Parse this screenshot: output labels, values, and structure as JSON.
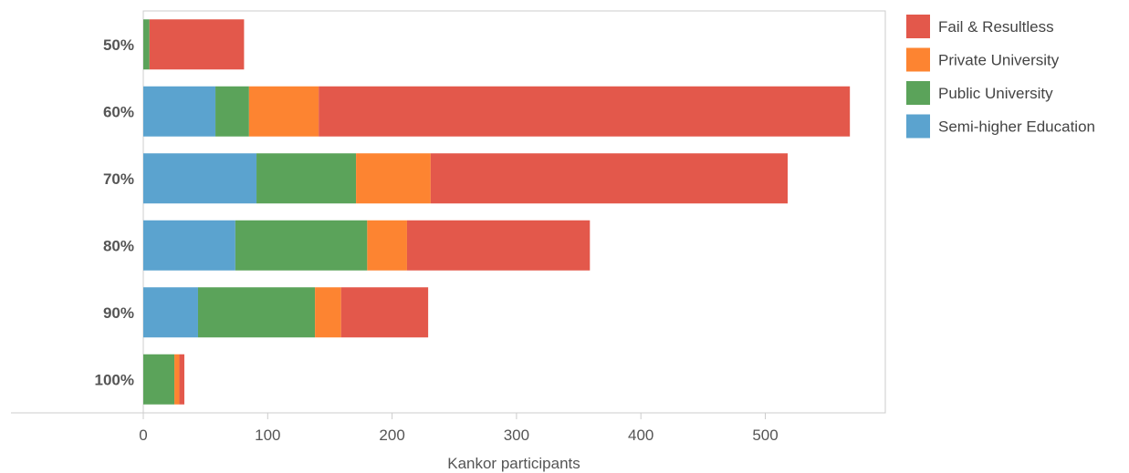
{
  "chart_data": {
    "type": "bar",
    "orientation": "horizontal",
    "stacked": true,
    "categories": [
      "50%",
      "60%",
      "70%",
      "80%",
      "90%",
      "100%"
    ],
    "series": [
      {
        "name": "Semi-higher Education",
        "color": "#5ba3cf",
        "values": [
          0,
          58,
          91,
          74,
          44,
          0
        ]
      },
      {
        "name": "Public University",
        "color": "#5ba35a",
        "values": [
          5,
          27,
          80,
          106,
          94,
          25
        ]
      },
      {
        "name": "Private University",
        "color": "#fd8431",
        "values": [
          0,
          56,
          60,
          32,
          21,
          4
        ]
      },
      {
        "name": "Fail & Resultless",
        "color": "#e3584b",
        "values": [
          76,
          427,
          287,
          147,
          70,
          4
        ]
      }
    ],
    "legend_order": [
      "Fail & Resultless",
      "Private University",
      "Public University",
      "Semi-higher Education"
    ],
    "legend_position": "right",
    "xlabel": "Kankor participants",
    "ylabel": "",
    "xlim": [
      0,
      600
    ],
    "xticks": [
      0,
      100,
      200,
      300,
      400,
      500
    ],
    "xtick_labels": [
      "0",
      "100",
      "200",
      "300",
      "400",
      "500"
    ],
    "grid": false
  }
}
